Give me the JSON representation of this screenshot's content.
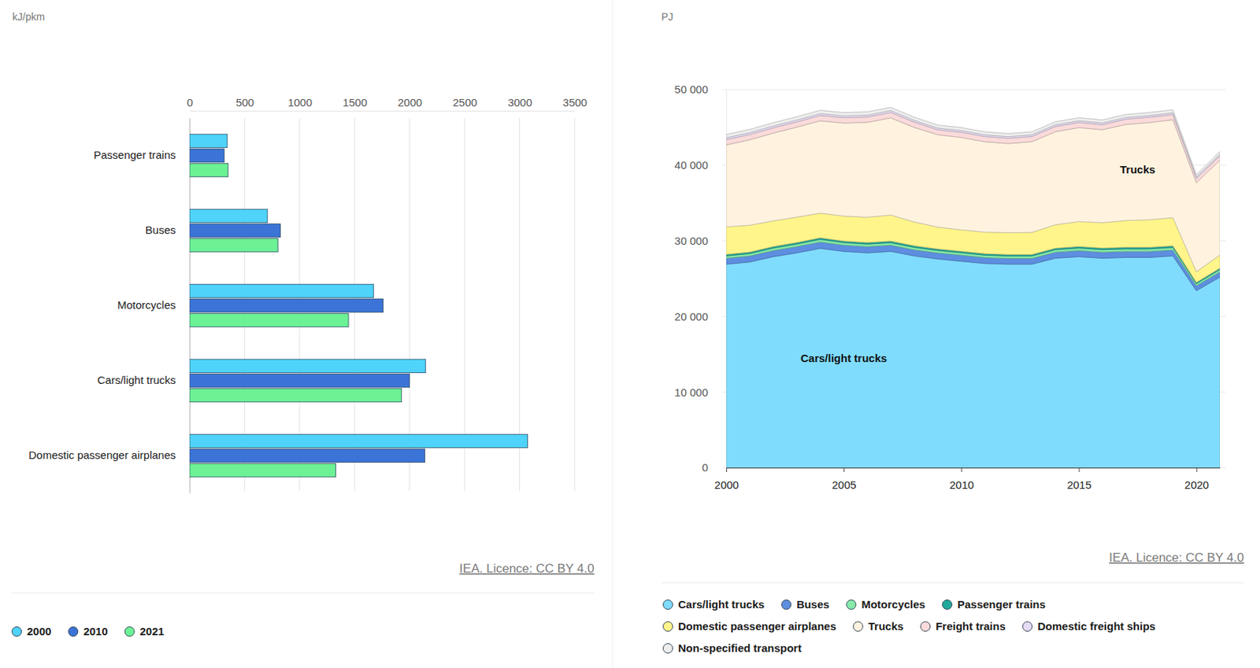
{
  "chart_data": [
    {
      "type": "bar",
      "orientation": "horizontal",
      "xlabel": "kJ/pkm",
      "categories": [
        "Passenger trains",
        "Buses",
        "Motorcycles",
        "Cars/light trucks",
        "Domestic passenger airplanes"
      ],
      "series": [
        {
          "name": "2000",
          "color": "#4fd3fb",
          "values": [
            343,
            708,
            1672,
            2146,
            3073
          ]
        },
        {
          "name": "2010",
          "color": "#3b74d6",
          "values": [
            314,
            825,
            1759,
            2000,
            2139
          ]
        },
        {
          "name": "2021",
          "color": "#6cf294",
          "values": [
            350,
            803,
            1445,
            1927,
            1328
          ]
        }
      ],
      "xlim": [
        0,
        3500
      ],
      "xticks": [
        0,
        500,
        1000,
        1500,
        2000,
        2500,
        3000,
        3500
      ],
      "grid": true,
      "legend": "bottom",
      "source": "IEA. Licence: CC BY 4.0"
    },
    {
      "type": "area",
      "stacked": true,
      "ylabel": "PJ",
      "x": [
        2000,
        2001,
        2002,
        2003,
        2004,
        2005,
        2006,
        2007,
        2008,
        2009,
        2010,
        2011,
        2012,
        2013,
        2014,
        2015,
        2016,
        2017,
        2018,
        2019,
        2020,
        2021
      ],
      "series": [
        {
          "name": "Cars/light trucks",
          "color": "#7fdcfd",
          "values": [
            26900,
            27200,
            27900,
            28400,
            29000,
            28600,
            28400,
            28600,
            28000,
            27600,
            27300,
            27000,
            26900,
            26900,
            27700,
            27900,
            27700,
            27800,
            27800,
            28000,
            23400,
            25200
          ]
        },
        {
          "name": "Buses",
          "color": "#5d8ee0",
          "values": [
            800,
            800,
            820,
            840,
            850,
            830,
            830,
            820,
            810,
            800,
            800,
            790,
            780,
            780,
            800,
            810,
            800,
            800,
            800,
            790,
            650,
            700
          ]
        },
        {
          "name": "Motorcycles",
          "color": "#86eaa8",
          "values": [
            300,
            310,
            320,
            330,
            340,
            330,
            330,
            330,
            320,
            320,
            320,
            310,
            310,
            310,
            320,
            330,
            330,
            330,
            330,
            330,
            280,
            300
          ]
        },
        {
          "name": "Passenger trains",
          "color": "#20a89c",
          "values": [
            200,
            200,
            200,
            210,
            210,
            210,
            210,
            210,
            210,
            200,
            200,
            200,
            200,
            200,
            200,
            210,
            210,
            210,
            210,
            210,
            170,
            180
          ]
        },
        {
          "name": "Domestic passenger airplanes",
          "color": "#fff58a",
          "values": [
            3650,
            3550,
            3400,
            3350,
            3260,
            3300,
            3350,
            3450,
            3150,
            2900,
            2830,
            2850,
            2900,
            2920,
            3100,
            3300,
            3350,
            3550,
            3650,
            3730,
            1410,
            1740
          ]
        },
        {
          "name": "Trucks",
          "color": "#fff3df",
          "values": [
            10830,
            11300,
            11600,
            11900,
            12210,
            12300,
            12550,
            12850,
            12500,
            12210,
            12220,
            11950,
            11780,
            12000,
            12300,
            12420,
            12300,
            12700,
            12850,
            12950,
            11790,
            12530
          ]
        },
        {
          "name": "Freight trains",
          "color": "#fadada",
          "values": [
            700,
            700,
            700,
            700,
            710,
            710,
            710,
            710,
            700,
            650,
            680,
            690,
            680,
            680,
            690,
            680,
            670,
            690,
            700,
            690,
            550,
            600
          ]
        },
        {
          "name": "Domestic freight ships",
          "color": "#e6dcf5",
          "values": [
            250,
            250,
            250,
            250,
            250,
            250,
            250,
            250,
            240,
            230,
            230,
            230,
            230,
            230,
            230,
            230,
            230,
            230,
            230,
            230,
            200,
            210
          ]
        },
        {
          "name": "Non-specified transport",
          "color": "#eeeeee",
          "values": [
            430,
            430,
            430,
            430,
            430,
            430,
            430,
            430,
            420,
            400,
            400,
            400,
            400,
            400,
            400,
            400,
            400,
            400,
            400,
            400,
            300,
            350
          ]
        }
      ],
      "xlim": [
        2000,
        2021
      ],
      "xticks": [
        2000,
        2005,
        2010,
        2015,
        2020
      ],
      "ylim": [
        0,
        50000
      ],
      "yticks": [
        0,
        {
          "value": 10000,
          "label": "10 000"
        },
        {
          "value": 20000,
          "label": "20 000"
        },
        {
          "value": 30000,
          "label": "30 000"
        },
        {
          "value": 40000,
          "label": "40 000"
        },
        {
          "value": 50000,
          "label": "50 000"
        }
      ],
      "grid": true,
      "legend": "bottom",
      "annotations": [
        {
          "text": "Trucks",
          "x": 2017.5,
          "y": 38900
        },
        {
          "text": "Cars/light trucks",
          "x": 2005,
          "y": 14000
        }
      ],
      "source": "IEA. Licence: CC BY 4.0"
    }
  ]
}
